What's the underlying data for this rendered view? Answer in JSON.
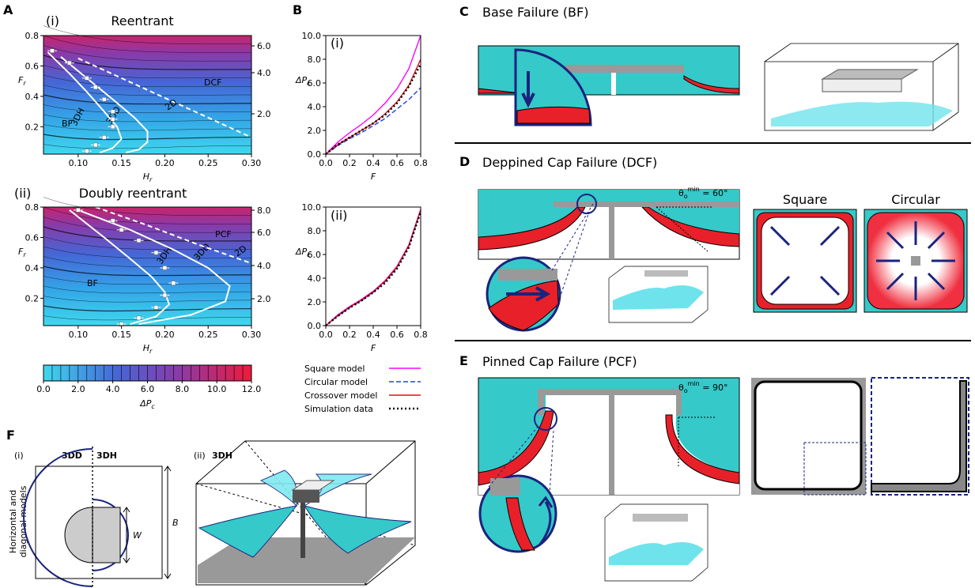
{
  "chart_data": [
    {
      "type": "contour",
      "panel": "A",
      "subtitle": "(i)",
      "title": "Reentrant",
      "xlabel": {
        "text": "H",
        "sub": "r"
      },
      "ylabel": {
        "text": "F",
        "sub": "r"
      },
      "xlim": [
        0.06,
        0.3
      ],
      "ylim": [
        0.02,
        0.8
      ],
      "xticks": [
        {
          "value": 0.1,
          "label": "0.10"
        },
        {
          "value": 0.15,
          "label": "0.15"
        },
        {
          "value": 0.2,
          "label": "0.20"
        },
        {
          "value": 0.25,
          "label": "0.25"
        },
        {
          "value": 0.3,
          "label": "0.30"
        }
      ],
      "yticks": [
        0.2,
        0.4,
        0.6,
        0.8
      ],
      "contour_labels": [
        "6.0",
        "4.0",
        "2.0"
      ],
      "regions": [
        "BF",
        "DCF"
      ],
      "boundaries": [
        {
          "name": "3DH",
          "x": [
            0.065,
            0.09,
            0.11,
            0.13,
            0.145,
            0.15,
            0.14,
            0.125
          ],
          "y": [
            0.69,
            0.55,
            0.43,
            0.3,
            0.2,
            0.12,
            0.06,
            0.03
          ]
        },
        {
          "name": "3DD",
          "x": [
            0.08,
            0.11,
            0.14,
            0.165,
            0.18,
            0.18,
            0.17,
            0.155
          ],
          "y": [
            0.66,
            0.52,
            0.38,
            0.26,
            0.17,
            0.1,
            0.05,
            0.03
          ]
        },
        {
          "name": "2D",
          "dashed": true,
          "x": [
            0.1,
            0.15,
            0.2,
            0.25,
            0.3
          ],
          "y": [
            0.65,
            0.52,
            0.39,
            0.26,
            0.13
          ]
        }
      ],
      "simulation": {
        "x": [
          0.07,
          0.09,
          0.11,
          0.12,
          0.13,
          0.14,
          0.14,
          0.14,
          0.13,
          0.12,
          0.11
        ],
        "y": [
          0.7,
          0.62,
          0.52,
          0.46,
          0.38,
          0.3,
          0.25,
          0.2,
          0.13,
          0.08,
          0.04
        ]
      }
    },
    {
      "type": "contour",
      "subtitle": "(ii)",
      "title": "Doubly reentrant",
      "xlabel": {
        "text": "H",
        "sub": "r"
      },
      "ylabel": {
        "text": "F",
        "sub": "r"
      },
      "xlim": [
        0.06,
        0.3
      ],
      "ylim": [
        0.02,
        0.8
      ],
      "xticks": [
        {
          "value": 0.1,
          "label": "0.10"
        },
        {
          "value": 0.15,
          "label": "0.15"
        },
        {
          "value": 0.2,
          "label": "0.20"
        },
        {
          "value": 0.25,
          "label": "0.25"
        },
        {
          "value": 0.3,
          "label": "0.30"
        }
      ],
      "yticks": [
        0.2,
        0.4,
        0.6,
        0.8
      ],
      "contour_labels": [
        "8.0",
        "6.0",
        "4.0",
        "2.0"
      ],
      "regions": [
        "BF",
        "PCF"
      ],
      "boundaries": [
        {
          "name": "3DH",
          "x": [
            0.09,
            0.13,
            0.16,
            0.185,
            0.2,
            0.205,
            0.19,
            0.16
          ],
          "y": [
            0.78,
            0.6,
            0.46,
            0.34,
            0.24,
            0.16,
            0.08,
            0.03
          ]
        },
        {
          "name": "3DD",
          "x": [
            0.1,
            0.16,
            0.21,
            0.25,
            0.275,
            0.27,
            0.23,
            0.17
          ],
          "y": [
            0.78,
            0.65,
            0.52,
            0.4,
            0.28,
            0.18,
            0.09,
            0.03
          ]
        },
        {
          "name": "2D",
          "dashed": true,
          "x": [
            0.12,
            0.18,
            0.24,
            0.3
          ],
          "y": [
            0.8,
            0.68,
            0.55,
            0.43
          ]
        }
      ],
      "simulation": {
        "x": [
          0.1,
          0.14,
          0.15,
          0.17,
          0.19,
          0.2,
          0.21,
          0.2,
          0.19,
          0.17,
          0.15
        ],
        "y": [
          0.78,
          0.71,
          0.65,
          0.58,
          0.5,
          0.4,
          0.3,
          0.22,
          0.14,
          0.07,
          0.03
        ]
      }
    },
    {
      "type": "colorbar",
      "xlim": [
        0,
        12
      ],
      "xticks": [
        {
          "value": 0,
          "label": "0.0"
        },
        {
          "value": 2,
          "label": "2.0"
        },
        {
          "value": 4,
          "label": "4.0"
        },
        {
          "value": 6,
          "label": "6.0"
        },
        {
          "value": 8,
          "label": "8.0"
        },
        {
          "value": 10,
          "label": "10.0"
        },
        {
          "value": 12,
          "label": "12.0"
        }
      ],
      "xlabel": {
        "text": "ΔP",
        "sub": "c"
      }
    },
    {
      "type": "line",
      "panel": "B",
      "subtitle": "(i)",
      "xlabel": {
        "text": "F"
      },
      "ylabel": {
        "text": "ΔP",
        "sub": "c"
      },
      "x": [
        0,
        0.1,
        0.2,
        0.3,
        0.4,
        0.5,
        0.6,
        0.7,
        0.8
      ],
      "xlim": [
        0,
        0.8
      ],
      "ylim": [
        0,
        10
      ],
      "xticks": [
        {
          "value": 0,
          "label": "0.0"
        },
        0.2,
        0.4,
        0.6,
        0.8
      ],
      "yticks": [
        {
          "value": 0,
          "label": "0.0"
        },
        {
          "value": 2,
          "label": "2.0"
        },
        {
          "value": 4,
          "label": "4.0"
        },
        {
          "value": 6,
          "label": "6.0"
        },
        {
          "value": 8,
          "label": "8.0"
        },
        {
          "value": 10,
          "label": "10.0"
        }
      ],
      "series": [
        {
          "name": "Square model",
          "color": "#ff00ff",
          "style": "solid",
          "values": [
            0,
            1.0,
            1.8,
            2.5,
            3.3,
            4.3,
            5.5,
            7.2,
            10.0
          ]
        },
        {
          "name": "Circular model",
          "color": "#2040e0",
          "style": "dashed",
          "values": [
            0,
            0.7,
            1.3,
            1.8,
            2.4,
            3.0,
            3.8,
            4.6,
            5.6
          ]
        },
        {
          "name": "Crossover model",
          "color": "#e0101a",
          "style": "solid",
          "values": [
            0,
            0.8,
            1.4,
            2.0,
            2.6,
            3.4,
            4.4,
            5.8,
            8.0
          ]
        },
        {
          "name": "Simulation data",
          "color": "#000000",
          "style": "dotted",
          "values": [
            0,
            0.8,
            1.4,
            2.0,
            2.6,
            3.3,
            4.3,
            5.7,
            7.6
          ]
        }
      ]
    },
    {
      "type": "line",
      "subtitle": "(ii)",
      "xlabel": {
        "text": "F"
      },
      "ylabel": {
        "text": "ΔP",
        "sub": "c"
      },
      "x": [
        0,
        0.1,
        0.2,
        0.3,
        0.4,
        0.5,
        0.6,
        0.7,
        0.8
      ],
      "xlim": [
        0,
        0.8
      ],
      "ylim": [
        0,
        10
      ],
      "xticks": [
        {
          "value": 0,
          "label": "0.0"
        },
        0.2,
        0.4,
        0.6,
        0.8
      ],
      "yticks": [
        {
          "value": 0,
          "label": "0.0"
        },
        {
          "value": 2,
          "label": "2.0"
        },
        {
          "value": 4,
          "label": "4.0"
        },
        {
          "value": 6,
          "label": "6.0"
        },
        {
          "value": 8,
          "label": "8.0"
        },
        {
          "value": 10,
          "label": "10.0"
        }
      ],
      "series": [
        {
          "color": "#ff00ff",
          "style": "solid",
          "values": [
            0,
            0.9,
            1.6,
            2.2,
            2.9,
            3.8,
            5.0,
            6.8,
            9.8
          ]
        },
        {
          "color": "#2040e0",
          "style": "dashed",
          "values": [
            0,
            0.8,
            1.5,
            2.1,
            2.8,
            3.7,
            4.9,
            6.7,
            9.7
          ]
        },
        {
          "color": "#e0101a",
          "style": "solid",
          "values": [
            0,
            0.85,
            1.55,
            2.15,
            2.85,
            3.75,
            4.95,
            6.75,
            9.75
          ]
        },
        {
          "color": "#000000",
          "style": "dotted",
          "values": [
            0,
            0.8,
            1.5,
            2.1,
            2.8,
            3.6,
            4.8,
            6.6,
            9.6
          ]
        }
      ]
    }
  ],
  "diagrams": {
    "C": {
      "letter": "C",
      "title": "Base Failure (BF)"
    },
    "D": {
      "letter": "D",
      "title": "Deppined Cap Failure (DCF)",
      "angle": {
        "text": "θ",
        "sub": "o",
        "sup": "min",
        "rest": " = 60°"
      },
      "square": "Square",
      "circular": "Circular"
    },
    "E": {
      "letter": "E",
      "title": "Pinned Cap Failure (PCF)",
      "angle": {
        "text": "θ",
        "sub": "o",
        "sup": "min",
        "rest": " = 90°"
      }
    },
    "F": {
      "letter": "F",
      "i": "(i)",
      "left": "3DD",
      "right": "3DH",
      "side": [
        "Horizontal and",
        "diagonal models"
      ],
      "w": "W",
      "b": "B",
      "ii": "(ii)",
      "ii_model": "3DH"
    }
  }
}
